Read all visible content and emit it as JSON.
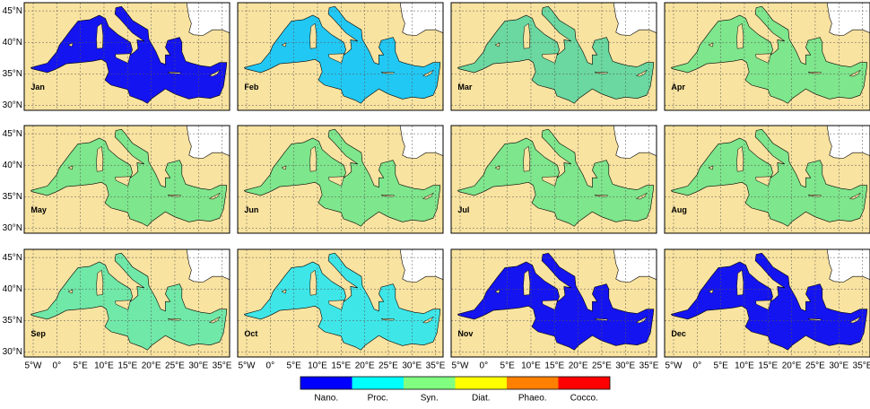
{
  "map": {
    "xlim": [
      -6.9,
      36.6
    ],
    "ylim": [
      29.2,
      46.3
    ],
    "land_color": "#f9e3a0",
    "panels": [
      {
        "label": "Jan",
        "color": "#1414f0"
      },
      {
        "label": "Feb",
        "color": "#22c8f4"
      },
      {
        "label": "Mar",
        "color": "#6ad8a0"
      },
      {
        "label": "Apr",
        "color": "#7ee68c"
      },
      {
        "label": "May",
        "color": "#7ee68c"
      },
      {
        "label": "Jun",
        "color": "#7ee68c"
      },
      {
        "label": "Jul",
        "color": "#7ee68c"
      },
      {
        "label": "Aug",
        "color": "#7ee68c"
      },
      {
        "label": "Sep",
        "color": "#70e8a8"
      },
      {
        "label": "Oct",
        "color": "#3ee6e8"
      },
      {
        "label": "Nov",
        "color": "#1414f0"
      },
      {
        "label": "Dec",
        "color": "#1414f0"
      }
    ],
    "lat_ticks": [
      {
        "value": 45,
        "label": "45°N"
      },
      {
        "value": 40,
        "label": "40°N"
      },
      {
        "value": 35,
        "label": "35°N"
      },
      {
        "value": 30,
        "label": "30°N"
      }
    ],
    "lon_ticks": [
      {
        "value": -5,
        "label": "5°W"
      },
      {
        "value": 0,
        "label": "0°"
      },
      {
        "value": 5,
        "label": "5°E"
      },
      {
        "value": 10,
        "label": "10°E"
      },
      {
        "value": 15,
        "label": "15°E"
      },
      {
        "value": 20,
        "label": "20°E"
      },
      {
        "value": 25,
        "label": "25°E"
      },
      {
        "value": 30,
        "label": "30°E"
      },
      {
        "value": 35,
        "label": "35°E"
      }
    ]
  },
  "legend": {
    "items": [
      {
        "label": "Nano.",
        "color": "#0000ff"
      },
      {
        "label": "Proc.",
        "color": "#00ffff"
      },
      {
        "label": "Syn.",
        "color": "#80ff80"
      },
      {
        "label": "Diat.",
        "color": "#ffff00"
      },
      {
        "label": "Phaeo.",
        "color": "#ff8000"
      },
      {
        "label": "Cocco.",
        "color": "#ff0000"
      }
    ]
  }
}
